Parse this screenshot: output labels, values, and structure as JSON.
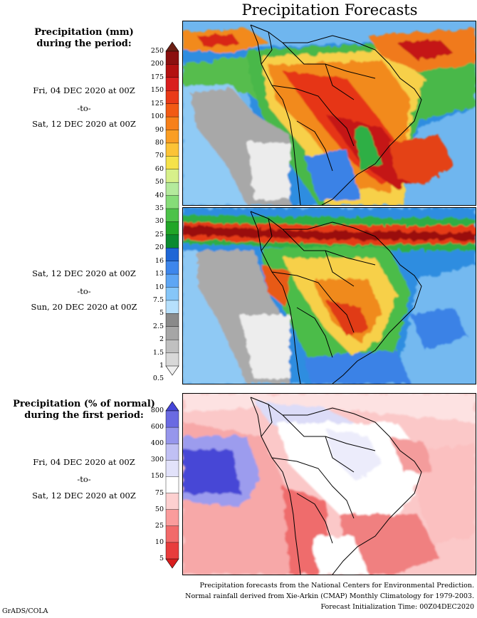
{
  "header": {
    "title": "Precipitation Forecasts"
  },
  "legend_top": {
    "title_line1": "Precipitation (mm)",
    "title_line2": "during the period:",
    "ticks": [
      "250",
      "200",
      "175",
      "150",
      "125",
      "100",
      "90",
      "80",
      "70",
      "60",
      "50",
      "40",
      "35",
      "30",
      "25",
      "20",
      "16",
      "13",
      "10",
      "7.5",
      "5",
      "2.5",
      "2",
      "1.5",
      "1",
      "0.5"
    ],
    "colors": [
      "#6b1f14",
      "#8b0f0f",
      "#b31010",
      "#d91e1e",
      "#ea3a18",
      "#f25a14",
      "#f7801a",
      "#fa9e24",
      "#fcc336",
      "#f5e24a",
      "#d7f08a",
      "#b4ea9c",
      "#86dc78",
      "#4cc24a",
      "#21a628",
      "#0b8a30",
      "#1e66d6",
      "#3d86ec",
      "#5ea6f4",
      "#86c6f8",
      "#b6e0fc",
      "#8a8a8a",
      "#a6a6a6",
      "#c0c0c0",
      "#d8d8d8",
      "#efefef"
    ]
  },
  "period1": {
    "start": "Fri, 04 DEC 2020 at 00Z",
    "sep": "-to-",
    "end": "Sat, 12 DEC 2020 at 00Z"
  },
  "period2": {
    "start": "Sat, 12 DEC 2020 at 00Z",
    "sep": "-to-",
    "end": "Sun, 20 DEC 2020 at 00Z"
  },
  "legend_bottom": {
    "title_line1": "Precipitation (% of normal)",
    "title_line2": "during the first period:",
    "ticks": [
      "800",
      "600",
      "400",
      "300",
      "150",
      "75",
      "50",
      "25",
      "10",
      "5"
    ],
    "colors": [
      "#4646d8",
      "#6a6ae2",
      "#9696ec",
      "#c0c0f4",
      "#e2e2fa",
      "#ffffff",
      "#fdd0d0",
      "#fa9c9c",
      "#f26a6a",
      "#e83c3c",
      "#d81e1e"
    ]
  },
  "period3": {
    "start": "Fri, 04 DEC 2020 at 00Z",
    "sep": "-to-",
    "end": "Sat, 12 DEC 2020 at 00Z"
  },
  "footer": {
    "line1": "Precipitation forecasts from the National Centers for Environmental Prediction.",
    "line2": "Normal rainfall derived from Xie-Arkin (CMAP) Monthly Climatology for 1979-2003.",
    "line3": "Forecast Initialization Time: 00Z04DEC2020",
    "credit": "GrADS/COLA"
  }
}
